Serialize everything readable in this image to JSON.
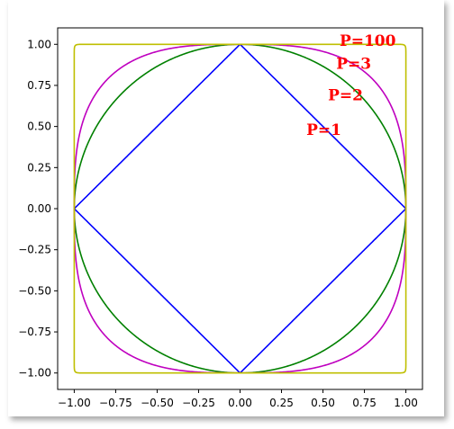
{
  "chart_data": {
    "type": "line",
    "title": "",
    "xlabel": "",
    "ylabel": "",
    "xlim": [
      -1.1,
      1.1
    ],
    "ylim": [
      -1.1,
      1.1
    ],
    "grid": false,
    "legend": "none",
    "x_ticks": [
      "−1.00",
      "−0.75",
      "−0.50",
      "−0.25",
      "0.00",
      "0.25",
      "0.50",
      "0.75",
      "1.00"
    ],
    "y_ticks": [
      "−1.00",
      "−0.75",
      "−0.50",
      "−0.25",
      "0.00",
      "0.25",
      "0.50",
      "0.75",
      "1.00"
    ],
    "x_tick_values": [
      -1.0,
      -0.75,
      -0.5,
      -0.25,
      0.0,
      0.25,
      0.5,
      0.75,
      1.0
    ],
    "y_tick_values": [
      -1.0,
      -0.75,
      -0.5,
      -0.25,
      0.0,
      0.25,
      0.5,
      0.75,
      1.0
    ],
    "series": [
      {
        "p": 1,
        "color": "#0000ff"
      },
      {
        "p": 2,
        "color": "#008000"
      },
      {
        "p": 3,
        "color": "#bf00bf"
      },
      {
        "p": 100,
        "color": "#bfbf00"
      }
    ],
    "annotations": [
      {
        "text": "P=1",
        "x": 0.4,
        "y": 0.45,
        "color": "#ff0000"
      },
      {
        "text": "P=2",
        "x": 0.53,
        "y": 0.66,
        "color": "#ff0000"
      },
      {
        "text": "P=3",
        "x": 0.58,
        "y": 0.85,
        "color": "#ff0000"
      },
      {
        "text": "P=100",
        "x": 0.6,
        "y": 0.99,
        "color": "#ff0000"
      }
    ]
  }
}
